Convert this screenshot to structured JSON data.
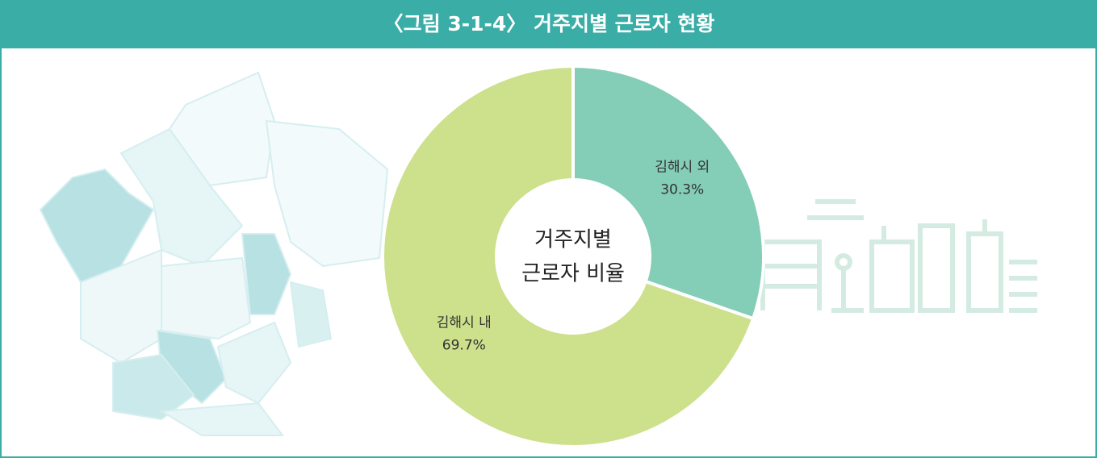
{
  "chart_data": {
    "type": "donut",
    "title": "〈그림 3-1-4〉 거주지별 근로자 현황",
    "center_label": [
      "거주지별",
      "근로자 비율"
    ],
    "categories": [
      "김해시 외",
      "김해시 내"
    ],
    "values": [
      30.3,
      69.7
    ],
    "value_labels": [
      "30.3%",
      "69.7%"
    ],
    "colors": [
      "#84cdb6",
      "#cde08c"
    ]
  }
}
